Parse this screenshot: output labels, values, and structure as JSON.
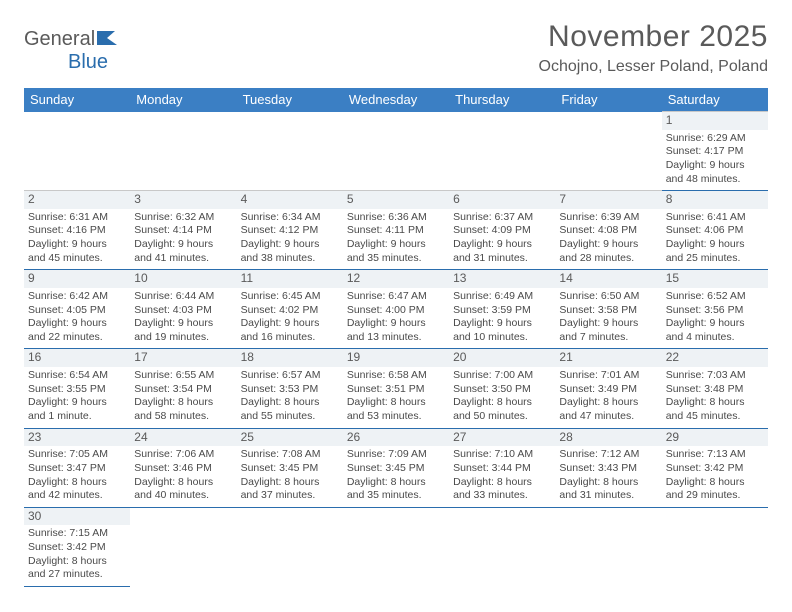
{
  "brand": {
    "part1": "General",
    "part2": "Blue"
  },
  "title": "November 2025",
  "location": "Ochojno, Lesser Poland, Poland",
  "colors": {
    "header_bg": "#3b7fc4",
    "header_text": "#ffffff",
    "text": "#5a5a5a",
    "cell_text": "#4a4a4a",
    "daynum_bg": "#eef2f5",
    "row_border": "#2a6dad",
    "cell_border": "#c8c8c8",
    "logo_blue": "#2a6dad"
  },
  "dayHeaders": [
    "Sunday",
    "Monday",
    "Tuesday",
    "Wednesday",
    "Thursday",
    "Friday",
    "Saturday"
  ],
  "weeks": [
    [
      {
        "day": "",
        "sunrise": "",
        "sunset": "",
        "daylight": "",
        "empty": true
      },
      {
        "day": "",
        "sunrise": "",
        "sunset": "",
        "daylight": "",
        "empty": true
      },
      {
        "day": "",
        "sunrise": "",
        "sunset": "",
        "daylight": "",
        "empty": true
      },
      {
        "day": "",
        "sunrise": "",
        "sunset": "",
        "daylight": "",
        "empty": true
      },
      {
        "day": "",
        "sunrise": "",
        "sunset": "",
        "daylight": "",
        "empty": true
      },
      {
        "day": "",
        "sunrise": "",
        "sunset": "",
        "daylight": "",
        "empty": true
      },
      {
        "day": "1",
        "sunrise": "Sunrise: 6:29 AM",
        "sunset": "Sunset: 4:17 PM",
        "daylight": "Daylight: 9 hours and 48 minutes."
      }
    ],
    [
      {
        "day": "2",
        "sunrise": "Sunrise: 6:31 AM",
        "sunset": "Sunset: 4:16 PM",
        "daylight": "Daylight: 9 hours and 45 minutes."
      },
      {
        "day": "3",
        "sunrise": "Sunrise: 6:32 AM",
        "sunset": "Sunset: 4:14 PM",
        "daylight": "Daylight: 9 hours and 41 minutes."
      },
      {
        "day": "4",
        "sunrise": "Sunrise: 6:34 AM",
        "sunset": "Sunset: 4:12 PM",
        "daylight": "Daylight: 9 hours and 38 minutes."
      },
      {
        "day": "5",
        "sunrise": "Sunrise: 6:36 AM",
        "sunset": "Sunset: 4:11 PM",
        "daylight": "Daylight: 9 hours and 35 minutes."
      },
      {
        "day": "6",
        "sunrise": "Sunrise: 6:37 AM",
        "sunset": "Sunset: 4:09 PM",
        "daylight": "Daylight: 9 hours and 31 minutes."
      },
      {
        "day": "7",
        "sunrise": "Sunrise: 6:39 AM",
        "sunset": "Sunset: 4:08 PM",
        "daylight": "Daylight: 9 hours and 28 minutes."
      },
      {
        "day": "8",
        "sunrise": "Sunrise: 6:41 AM",
        "sunset": "Sunset: 4:06 PM",
        "daylight": "Daylight: 9 hours and 25 minutes."
      }
    ],
    [
      {
        "day": "9",
        "sunrise": "Sunrise: 6:42 AM",
        "sunset": "Sunset: 4:05 PM",
        "daylight": "Daylight: 9 hours and 22 minutes."
      },
      {
        "day": "10",
        "sunrise": "Sunrise: 6:44 AM",
        "sunset": "Sunset: 4:03 PM",
        "daylight": "Daylight: 9 hours and 19 minutes."
      },
      {
        "day": "11",
        "sunrise": "Sunrise: 6:45 AM",
        "sunset": "Sunset: 4:02 PM",
        "daylight": "Daylight: 9 hours and 16 minutes."
      },
      {
        "day": "12",
        "sunrise": "Sunrise: 6:47 AM",
        "sunset": "Sunset: 4:00 PM",
        "daylight": "Daylight: 9 hours and 13 minutes."
      },
      {
        "day": "13",
        "sunrise": "Sunrise: 6:49 AM",
        "sunset": "Sunset: 3:59 PM",
        "daylight": "Daylight: 9 hours and 10 minutes."
      },
      {
        "day": "14",
        "sunrise": "Sunrise: 6:50 AM",
        "sunset": "Sunset: 3:58 PM",
        "daylight": "Daylight: 9 hours and 7 minutes."
      },
      {
        "day": "15",
        "sunrise": "Sunrise: 6:52 AM",
        "sunset": "Sunset: 3:56 PM",
        "daylight": "Daylight: 9 hours and 4 minutes."
      }
    ],
    [
      {
        "day": "16",
        "sunrise": "Sunrise: 6:54 AM",
        "sunset": "Sunset: 3:55 PM",
        "daylight": "Daylight: 9 hours and 1 minute."
      },
      {
        "day": "17",
        "sunrise": "Sunrise: 6:55 AM",
        "sunset": "Sunset: 3:54 PM",
        "daylight": "Daylight: 8 hours and 58 minutes."
      },
      {
        "day": "18",
        "sunrise": "Sunrise: 6:57 AM",
        "sunset": "Sunset: 3:53 PM",
        "daylight": "Daylight: 8 hours and 55 minutes."
      },
      {
        "day": "19",
        "sunrise": "Sunrise: 6:58 AM",
        "sunset": "Sunset: 3:51 PM",
        "daylight": "Daylight: 8 hours and 53 minutes."
      },
      {
        "day": "20",
        "sunrise": "Sunrise: 7:00 AM",
        "sunset": "Sunset: 3:50 PM",
        "daylight": "Daylight: 8 hours and 50 minutes."
      },
      {
        "day": "21",
        "sunrise": "Sunrise: 7:01 AM",
        "sunset": "Sunset: 3:49 PM",
        "daylight": "Daylight: 8 hours and 47 minutes."
      },
      {
        "day": "22",
        "sunrise": "Sunrise: 7:03 AM",
        "sunset": "Sunset: 3:48 PM",
        "daylight": "Daylight: 8 hours and 45 minutes."
      }
    ],
    [
      {
        "day": "23",
        "sunrise": "Sunrise: 7:05 AM",
        "sunset": "Sunset: 3:47 PM",
        "daylight": "Daylight: 8 hours and 42 minutes."
      },
      {
        "day": "24",
        "sunrise": "Sunrise: 7:06 AM",
        "sunset": "Sunset: 3:46 PM",
        "daylight": "Daylight: 8 hours and 40 minutes."
      },
      {
        "day": "25",
        "sunrise": "Sunrise: 7:08 AM",
        "sunset": "Sunset: 3:45 PM",
        "daylight": "Daylight: 8 hours and 37 minutes."
      },
      {
        "day": "26",
        "sunrise": "Sunrise: 7:09 AM",
        "sunset": "Sunset: 3:45 PM",
        "daylight": "Daylight: 8 hours and 35 minutes."
      },
      {
        "day": "27",
        "sunrise": "Sunrise: 7:10 AM",
        "sunset": "Sunset: 3:44 PM",
        "daylight": "Daylight: 8 hours and 33 minutes."
      },
      {
        "day": "28",
        "sunrise": "Sunrise: 7:12 AM",
        "sunset": "Sunset: 3:43 PM",
        "daylight": "Daylight: 8 hours and 31 minutes."
      },
      {
        "day": "29",
        "sunrise": "Sunrise: 7:13 AM",
        "sunset": "Sunset: 3:42 PM",
        "daylight": "Daylight: 8 hours and 29 minutes."
      }
    ],
    [
      {
        "day": "30",
        "sunrise": "Sunrise: 7:15 AM",
        "sunset": "Sunset: 3:42 PM",
        "daylight": "Daylight: 8 hours and 27 minutes."
      },
      {
        "day": "",
        "sunrise": "",
        "sunset": "",
        "daylight": "",
        "empty": true
      },
      {
        "day": "",
        "sunrise": "",
        "sunset": "",
        "daylight": "",
        "empty": true
      },
      {
        "day": "",
        "sunrise": "",
        "sunset": "",
        "daylight": "",
        "empty": true
      },
      {
        "day": "",
        "sunrise": "",
        "sunset": "",
        "daylight": "",
        "empty": true
      },
      {
        "day": "",
        "sunrise": "",
        "sunset": "",
        "daylight": "",
        "empty": true
      },
      {
        "day": "",
        "sunrise": "",
        "sunset": "",
        "daylight": "",
        "empty": true
      }
    ]
  ]
}
